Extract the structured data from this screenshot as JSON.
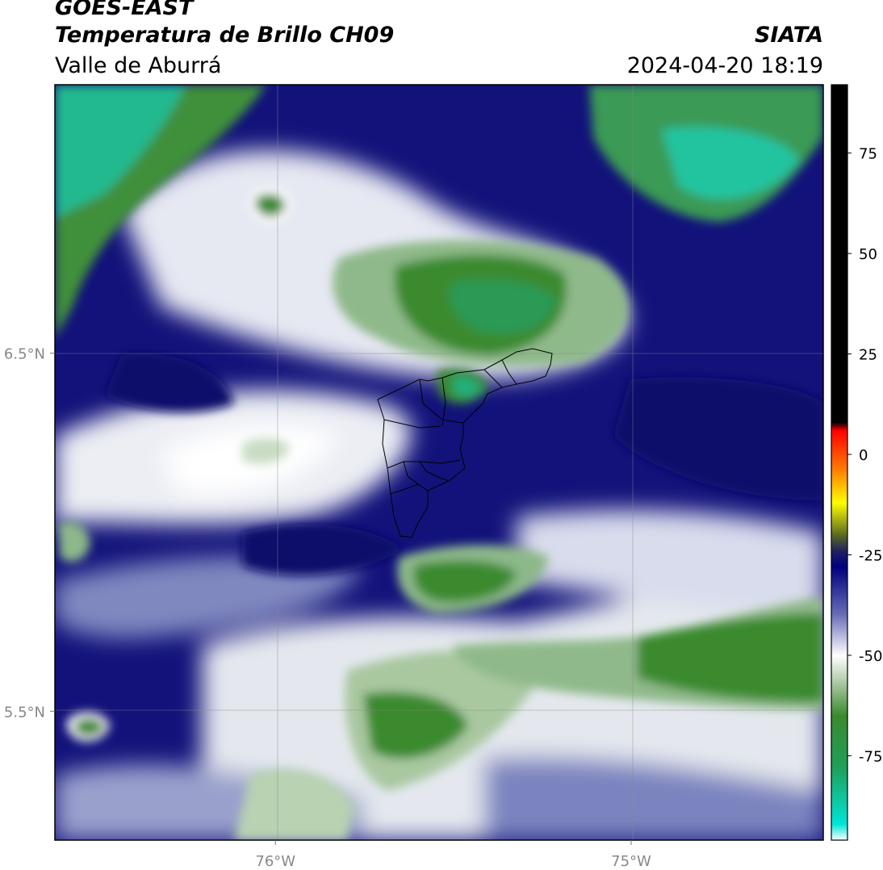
{
  "header": {
    "satellite": "GOES-EAST",
    "product": "Temperatura de Brillo CH09",
    "region": "Valle de Aburrá",
    "agency": "SIATA",
    "datetime": "2024-04-20 18:19"
  },
  "chart_data": {
    "type": "heatmap",
    "title": "Temperatura de Brillo CH09",
    "x_axis": {
      "ticks": [
        "76°W",
        "75°W"
      ],
      "tick_values": [
        -76,
        -75
      ],
      "range": [
        -76.62,
        -74.46
      ]
    },
    "y_axis": {
      "ticks": [
        "6.5°N",
        "5.5°N"
      ],
      "tick_values": [
        6.5,
        5.5
      ],
      "range": [
        5.14,
        7.25
      ]
    },
    "grid": true,
    "colorbar": {
      "ticks": [
        "75",
        "50",
        "25",
        "0",
        "-25",
        "-50",
        "-75"
      ],
      "tick_values": [
        75,
        50,
        25,
        0,
        -25,
        -50,
        -75
      ],
      "range": [
        -96,
        92
      ],
      "stops": [
        {
          "value": -96,
          "color": "#ffffff"
        },
        {
          "value": -92,
          "color": "#00e5d8"
        },
        {
          "value": -78,
          "color": "#1fa05a"
        },
        {
          "value": -65,
          "color": "#3a8a2e"
        },
        {
          "value": -56,
          "color": "#b7cfb0"
        },
        {
          "value": -50,
          "color": "#ffffff"
        },
        {
          "value": -40,
          "color": "#6a6fb8"
        },
        {
          "value": -28,
          "color": "#000080"
        },
        {
          "value": -24,
          "color": "#202060"
        },
        {
          "value": -20,
          "color": "#5a6a20"
        },
        {
          "value": -12,
          "color": "#ffff00"
        },
        {
          "value": -4,
          "color": "#ff8000"
        },
        {
          "value": 6,
          "color": "#ff0000"
        },
        {
          "value": 8,
          "color": "#000000"
        },
        {
          "value": 92,
          "color": "#000000"
        }
      ]
    },
    "field_regions": [
      {
        "name": "cold-cloud-northwest",
        "level": "green-cyan"
      },
      {
        "name": "cold-cloud-northeast",
        "level": "cyan-green"
      },
      {
        "name": "cold-cloud-center",
        "level": "green"
      },
      {
        "name": "cold-cloud-south",
        "level": "green"
      },
      {
        "name": "moist-band-blue",
        "level": "navy"
      }
    ],
    "overlay": "Valle de Aburrá municipal boundaries"
  }
}
